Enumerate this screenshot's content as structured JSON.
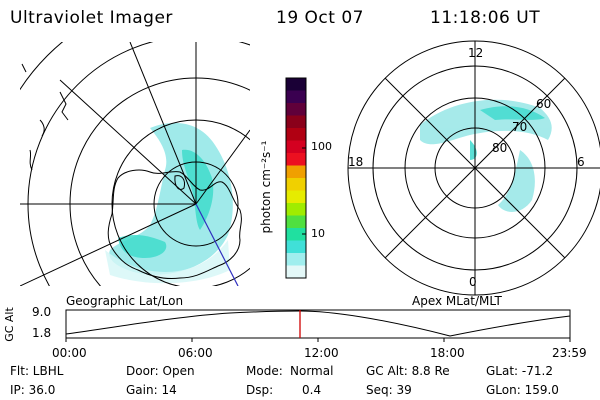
{
  "header": {
    "instrument": "Ultraviolet Imager",
    "date": "19 Oct 07",
    "time": "11:18:06 UT"
  },
  "geo_panel": {
    "caption": "Geographic Lat/Lon"
  },
  "apex_panel": {
    "caption": "Apex MLat/MLT",
    "mlt_labels": {
      "top": "12",
      "left": "18",
      "right": "6",
      "bottom": "0"
    },
    "lat_labels": [
      "60",
      "70",
      "80"
    ]
  },
  "colorbar": {
    "unit_label": "photon cm⁻²s⁻¹",
    "ticks": [
      "100",
      "10"
    ],
    "colors_top_to_bottom": [
      "#1a0036",
      "#3a0050",
      "#60003a",
      "#8a001a",
      "#b00012",
      "#d40020",
      "#ec1020",
      "#f0a000",
      "#f0d000",
      "#e6ec00",
      "#a0ec00",
      "#50e040",
      "#20e0a0",
      "#40e0d8",
      "#a0eeee",
      "#e4f8f8"
    ]
  },
  "altitude_plot": {
    "ylabel": "GC Alt",
    "yticks": [
      "9.0",
      "1.8"
    ],
    "xticks": [
      "00:00",
      "06:00",
      "12:00",
      "18:00",
      "23:59"
    ],
    "current_marker_color": "#d00000"
  },
  "info": {
    "row1": {
      "filter": "Flt: LBHL",
      "door": "Door: Open",
      "mode_label": "Mode:",
      "mode_value": "Normal",
      "gc_alt": "GC Alt: 8.8 Re",
      "glat": "GLat: -71.2"
    },
    "row2": {
      "ip": "IP: 36.0",
      "gain": "Gain: 14",
      "dsp_label": "Dsp:",
      "dsp_value": "0.4",
      "seq": "Seq: 39",
      "glon": "GLon: 159.0"
    }
  }
}
